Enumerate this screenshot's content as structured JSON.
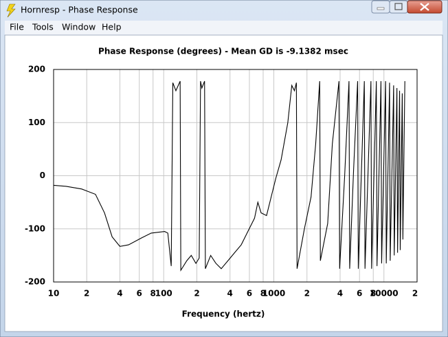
{
  "window": {
    "title": "Hornresp - Phase Response",
    "menu": [
      "File",
      "Tools",
      "Window",
      "Help"
    ]
  },
  "chart_data": {
    "type": "line",
    "title": "Phase Response (degrees) - Mean GD is -9.1382 msec",
    "xlabel": "Frequency (hertz)",
    "xscale": "log",
    "grid": true,
    "color": "#000000",
    "xlim": [
      10,
      20000
    ],
    "ylim": [
      -200,
      200
    ],
    "xticks": [
      10,
      {
        "value": 20,
        "label": "2"
      },
      {
        "value": 40,
        "label": "4"
      },
      {
        "value": 60,
        "label": "6"
      },
      {
        "value": 80,
        "label": "8"
      },
      100,
      {
        "value": 200,
        "label": "2"
      },
      {
        "value": 400,
        "label": "4"
      },
      {
        "value": 600,
        "label": "6"
      },
      {
        "value": 800,
        "label": "8"
      },
      1000,
      {
        "value": 2000,
        "label": "2"
      },
      {
        "value": 4000,
        "label": "4"
      },
      {
        "value": 6000,
        "label": "6"
      },
      {
        "value": 8000,
        "label": "8"
      },
      10000,
      {
        "value": 20000,
        "label": "2"
      }
    ],
    "yticks": [
      -200,
      -100,
      0,
      100,
      200
    ],
    "x": [
      10,
      13,
      18,
      24,
      29,
      34,
      40,
      48,
      63,
      77,
      102,
      109,
      117,
      121,
      129,
      141,
      143,
      162,
      178,
      196,
      210,
      216,
      222,
      235,
      239,
      267,
      298,
      333,
      383,
      440,
      506,
      581,
      668,
      716,
      767,
      859,
      946,
      1042,
      1165,
      1340,
      1456,
      1539,
      1603,
      1626,
      1895,
      2178,
      2400,
      2610,
      2646,
      3084,
      3400,
      3905,
      3960,
      4400,
      4816,
      4886,
      5300,
      5770,
      5850,
      6637,
      6730,
      7620,
      7730,
      8530,
      8650,
      9400,
      9530,
      10350,
      10500,
      11250,
      11400,
      12250,
      12400,
      13120,
      13300,
      13870,
      14060,
      14670,
      14860,
      15490
    ],
    "values": [
      -18,
      -20,
      -25,
      -35,
      -70,
      -115,
      -133,
      -130,
      -117,
      -108,
      -105,
      -108,
      -170,
      175,
      160,
      178,
      -178,
      -160,
      -150,
      -165,
      -155,
      178,
      165,
      178,
      -175,
      -150,
      -165,
      -175,
      -160,
      -145,
      -130,
      -105,
      -80,
      -50,
      -70,
      -75,
      -40,
      -5,
      30,
      100,
      170,
      160,
      175,
      -175,
      -100,
      -40,
      60,
      178,
      -160,
      -90,
      60,
      178,
      -175,
      0,
      178,
      -175,
      10,
      178,
      -175,
      178,
      -175,
      178,
      -175,
      178,
      -170,
      178,
      -165,
      178,
      -165,
      175,
      -160,
      170,
      -150,
      165,
      -145,
      160,
      -140,
      155,
      -120,
      178
    ]
  }
}
